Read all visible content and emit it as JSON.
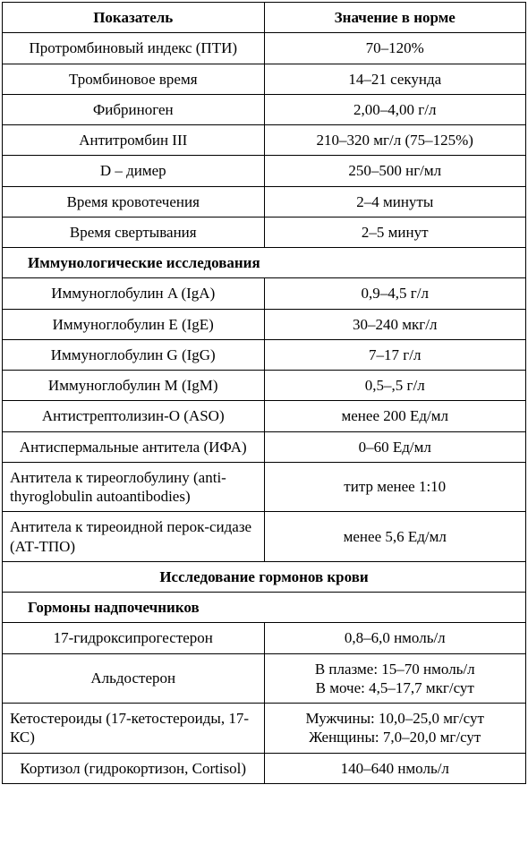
{
  "table": {
    "header": {
      "indicator": "Показатель",
      "value": "Значение в норме"
    },
    "columns": {
      "indicator_width_pct": 50,
      "value_width_pct": 50
    },
    "font": {
      "body_size_pt": 13,
      "header_weight": "bold",
      "section_weight": "bold"
    },
    "colors": {
      "border": "#000000",
      "background": "#ffffff",
      "text": "#000000"
    },
    "rows": [
      {
        "type": "data",
        "indicator": "Протромбиновый индекс (ПТИ)",
        "value": "70–120%"
      },
      {
        "type": "data",
        "indicator": "Тромбиновое время",
        "value": "14–21 секунда"
      },
      {
        "type": "data",
        "indicator": "Фибриноген",
        "value": "2,00–4,00 г/л"
      },
      {
        "type": "data",
        "indicator": "Антитромбин III",
        "value": "210–320 мг/л (75–125%)"
      },
      {
        "type": "data",
        "indicator": "D – димер",
        "value": "250–500 нг/мл"
      },
      {
        "type": "data",
        "indicator": "Время кровотечения",
        "value": "2–4 минуты"
      },
      {
        "type": "data",
        "indicator": "Время свертывания",
        "value": "2–5 минут"
      },
      {
        "type": "section-left",
        "indicator": "Иммунологические исследования"
      },
      {
        "type": "data",
        "indicator": "Иммуноглобулин A (IgA)",
        "value": "0,9–4,5 г/л"
      },
      {
        "type": "data",
        "indicator": "Иммуноглобулин E (IgE)",
        "value": "30–240 мкг/л"
      },
      {
        "type": "data",
        "indicator": "Иммуноглобулин G (IgG)",
        "value": "7–17 г/л"
      },
      {
        "type": "data",
        "indicator": "Иммуноглобулин M (IgM)",
        "value": "0,5–,5 г/л"
      },
      {
        "type": "data",
        "indicator": "Антистрептолизин-О (ASO)",
        "value": "менее 200 Ед/мл"
      },
      {
        "type": "data",
        "indicator": "Антиспермальные антитела (ИФА)",
        "value": "0–60 Ед/мл"
      },
      {
        "type": "data-left",
        "indicator": "Антитела к тиреоглобулину (anti-thyroglobulin autoantibodies)",
        "value": "титр менее 1:10"
      },
      {
        "type": "data-left",
        "indicator": "Антитела к тиреоидной перок-сидазе (АТ-ТПО)",
        "value": "менее 5,6 Ед/мл"
      },
      {
        "type": "section-center",
        "indicator": "Исследование гормонов крови"
      },
      {
        "type": "section-left",
        "indicator": "Гормоны надпочечников"
      },
      {
        "type": "data",
        "indicator": "17-гидроксипрогестерон",
        "value": "0,8–6,0 нмоль/л"
      },
      {
        "type": "data-multi",
        "indicator": "Альдостерон",
        "value_lines": [
          "В плазме: 15–70 нмоль/л",
          "В моче: 4,5–17,7 мкг/сут"
        ]
      },
      {
        "type": "data-multi-left",
        "indicator": "Кетостероиды (17-кетостероиды, 17-КС)",
        "value_lines": [
          "Мужчины: 10,0–25,0 мг/сут",
          "Женщины: 7,0–20,0 мг/сут"
        ]
      },
      {
        "type": "data",
        "indicator": "Кортизол (гидрокортизон, Cortisol)",
        "value": "140–640 нмоль/л"
      }
    ]
  }
}
